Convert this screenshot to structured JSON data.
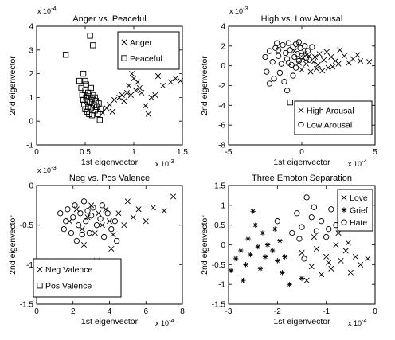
{
  "chart_data": [
    {
      "type": "scatter",
      "title": "Anger vs. Peaceful",
      "xlabel": "1st eigenvector",
      "ylabel": "2nd eigenvector",
      "x_scale_label": "x 10",
      "x_scale_exp": "-3",
      "y_scale_label": "x 10",
      "y_scale_exp": "-4",
      "xlim": [
        0,
        1.5
      ],
      "ylim": [
        -1,
        4
      ],
      "xticks": [
        "0",
        "0.5",
        "1",
        "1.5"
      ],
      "yticks": [
        "-1",
        "0",
        "1",
        "2",
        "3",
        "4"
      ],
      "legend_position": "top-right",
      "series": [
        {
          "name": "Anger",
          "marker": "x",
          "points": [
            [
              0.68,
              0.35
            ],
            [
              0.72,
              0.55
            ],
            [
              0.75,
              0.7
            ],
            [
              0.8,
              0.9
            ],
            [
              0.85,
              1.0
            ],
            [
              0.88,
              1.1
            ],
            [
              0.9,
              0.85
            ],
            [
              0.93,
              1.2
            ],
            [
              0.95,
              1.5
            ],
            [
              0.98,
              2.0
            ],
            [
              1.0,
              1.8
            ],
            [
              1.02,
              1.3
            ],
            [
              1.04,
              1.65
            ],
            [
              1.06,
              1.4
            ],
            [
              1.08,
              1.2
            ],
            [
              1.12,
              0.65
            ],
            [
              1.15,
              0.3
            ],
            [
              1.18,
              1.0
            ],
            [
              1.22,
              1.1
            ],
            [
              1.25,
              1.9
            ],
            [
              1.3,
              1.5
            ],
            [
              1.38,
              1.65
            ],
            [
              1.43,
              1.8
            ],
            [
              1.48,
              1.7
            ],
            [
              0.78,
              0.4
            ],
            [
              0.97,
              1.1
            ]
          ]
        },
        {
          "name": "Peaceful",
          "marker": "square",
          "points": [
            [
              0.3,
              2.8
            ],
            [
              0.44,
              1.7
            ],
            [
              0.46,
              1.4
            ],
            [
              0.47,
              1.1
            ],
            [
              0.48,
              0.9
            ],
            [
              0.49,
              0.7
            ],
            [
              0.5,
              0.5
            ],
            [
              0.5,
              1.3
            ],
            [
              0.51,
              1.0
            ],
            [
              0.52,
              0.4
            ],
            [
              0.52,
              0.85
            ],
            [
              0.53,
              1.2
            ],
            [
              0.53,
              0.6
            ],
            [
              0.54,
              0.3
            ],
            [
              0.54,
              1.05
            ],
            [
              0.55,
              0.8
            ],
            [
              0.55,
              3.6
            ],
            [
              0.56,
              1.4
            ],
            [
              0.56,
              0.55
            ],
            [
              0.57,
              0.95
            ],
            [
              0.57,
              0.25
            ],
            [
              0.58,
              1.1
            ],
            [
              0.58,
              3.2
            ],
            [
              0.59,
              0.7
            ],
            [
              0.6,
              0.45
            ],
            [
              0.6,
              1.0
            ],
            [
              0.61,
              0.85
            ],
            [
              0.62,
              0.6
            ],
            [
              0.63,
              0.3
            ],
            [
              0.64,
              0.75
            ],
            [
              0.65,
              0.05
            ],
            [
              0.66,
              0.5
            ],
            [
              0.5,
              1.7
            ],
            [
              0.48,
              2.0
            ],
            [
              0.51,
              1.55
            ]
          ]
        }
      ]
    },
    {
      "type": "scatter",
      "title": "High vs. Low Arousal",
      "xlabel": "1st eigenvector",
      "ylabel": "2nd eigenvector",
      "x_scale_label": "x 10",
      "x_scale_exp": "-4",
      "y_scale_label": "x 10",
      "y_scale_exp": "-3",
      "xlim": [
        -5,
        5
      ],
      "ylim": [
        -8,
        4
      ],
      "xticks": [
        "-5",
        "0",
        "5"
      ],
      "yticks": [
        "-8",
        "-6",
        "-4",
        "-2",
        "0",
        "2",
        "4"
      ],
      "legend_position": "bottom-right",
      "series": [
        {
          "name": "High Arousal",
          "marker": "x",
          "points": [
            [
              -0.2,
              0.3
            ],
            [
              0.1,
              0.8
            ],
            [
              0.3,
              0.2
            ],
            [
              0.5,
              1.0
            ],
            [
              0.8,
              0.4
            ],
            [
              1.0,
              -0.3
            ],
            [
              1.2,
              1.2
            ],
            [
              1.5,
              0.6
            ],
            [
              1.8,
              -0.2
            ],
            [
              2.0,
              0.9
            ],
            [
              2.3,
              0.5
            ],
            [
              2.6,
              1.6
            ],
            [
              2.9,
              1.0
            ],
            [
              3.2,
              0.3
            ],
            [
              3.5,
              0.7
            ],
            [
              4.0,
              0.5
            ],
            [
              4.6,
              0.4
            ],
            [
              0.6,
              -0.6
            ],
            [
              1.1,
              0.1
            ],
            [
              1.7,
              1.4
            ],
            [
              2.1,
              -0.1
            ],
            [
              0.2,
              1.3
            ],
            [
              0.9,
              0.9
            ],
            [
              1.4,
              -0.5
            ],
            [
              2.5,
              0.2
            ],
            [
              3.8,
              1.1
            ],
            [
              -0.5,
              1.5
            ],
            [
              0.0,
              -0.4
            ]
          ]
        },
        {
          "name": "Low Arousal",
          "marker": "o",
          "points": [
            [
              -2.5,
              0.9
            ],
            [
              -2.2,
              1.5
            ],
            [
              -2.0,
              0.4
            ],
            [
              -1.8,
              1.8
            ],
            [
              -1.6,
              1.0
            ],
            [
              -1.4,
              0.2
            ],
            [
              -1.3,
              2.1
            ],
            [
              -1.1,
              1.3
            ],
            [
              -1.0,
              0.7
            ],
            [
              -0.9,
              2.3
            ],
            [
              -0.8,
              1.6
            ],
            [
              -0.7,
              0.1
            ],
            [
              -0.6,
              1.9
            ],
            [
              -0.5,
              0.9
            ],
            [
              -0.4,
              2.2
            ],
            [
              -0.3,
              1.2
            ],
            [
              -0.2,
              0.5
            ],
            [
              -0.1,
              1.8
            ],
            [
              0.0,
              1.0
            ],
            [
              0.2,
              2.0
            ],
            [
              0.4,
              1.5
            ],
            [
              0.5,
              0.6
            ],
            [
              0.7,
              1.9
            ],
            [
              -2.4,
              -0.6
            ],
            [
              -1.9,
              -1.3
            ],
            [
              -1.5,
              -0.7
            ],
            [
              -1.2,
              -1.6
            ],
            [
              -2.2,
              -1.8
            ],
            [
              -1.0,
              -2.5
            ],
            [
              -0.6,
              -1.0
            ],
            [
              -1.7,
              2.3
            ],
            [
              -0.9,
              0.3
            ],
            [
              0.3,
              0.8
            ],
            [
              -0.4,
              -0.2
            ],
            [
              -1.6,
              1.6
            ],
            [
              -0.2,
              2.4
            ]
          ]
        },
        {
          "name": "",
          "marker": "square",
          "points": [
            [
              -0.8,
              -3.7
            ]
          ]
        }
      ]
    },
    {
      "type": "scatter",
      "title": "Neg vs. Pos Valence",
      "xlabel": "1st eigenvector",
      "ylabel": "2nd eigenvector",
      "x_scale_label": "x 10",
      "x_scale_exp": "-4",
      "y_scale_label": "x 10",
      "y_scale_exp": "-3",
      "xlim": [
        0,
        8
      ],
      "ylim": [
        -1.5,
        0
      ],
      "xticks": [
        "0",
        "2",
        "4",
        "6",
        "8"
      ],
      "yticks": [
        "-1.5",
        "-1",
        "-0.5",
        "0"
      ],
      "legend_position": "bottom-left",
      "series": [
        {
          "name": "Neg Valence",
          "marker": "x",
          "points": [
            [
              1.8,
              -0.45
            ],
            [
              2.2,
              -0.3
            ],
            [
              2.5,
              -0.55
            ],
            [
              2.8,
              -0.4
            ],
            [
              3.0,
              -0.25
            ],
            [
              3.2,
              -0.6
            ],
            [
              3.4,
              -0.35
            ],
            [
              3.6,
              -0.5
            ],
            [
              3.8,
              -0.3
            ],
            [
              4.0,
              -0.45
            ],
            [
              4.2,
              -0.62
            ],
            [
              4.5,
              -0.35
            ],
            [
              4.8,
              -0.5
            ],
            [
              5.0,
              -0.2
            ],
            [
              5.3,
              -0.4
            ],
            [
              5.6,
              -0.3
            ],
            [
              6.0,
              -0.45
            ],
            [
              6.4,
              -0.28
            ],
            [
              7.0,
              -0.32
            ],
            [
              7.5,
              -0.14
            ],
            [
              3.3,
              -0.95
            ],
            [
              2.6,
              -0.75
            ],
            [
              4.1,
              -0.8
            ]
          ]
        },
        {
          "name": "Pos Valence",
          "marker": "square",
          "points": []
        },
        {
          "name": "",
          "marker": "o",
          "points": [
            [
              1.3,
              -0.35
            ],
            [
              1.5,
              -0.55
            ],
            [
              1.7,
              -0.3
            ],
            [
              1.9,
              -0.6
            ],
            [
              2.0,
              -0.4
            ],
            [
              2.1,
              -0.25
            ],
            [
              2.3,
              -0.5
            ],
            [
              2.4,
              -0.35
            ],
            [
              2.6,
              -0.2
            ],
            [
              2.7,
              -0.45
            ],
            [
              2.9,
              -0.6
            ],
            [
              3.0,
              -0.38
            ],
            [
              3.1,
              -0.28
            ],
            [
              3.3,
              -0.5
            ],
            [
              3.5,
              -0.42
            ],
            [
              3.7,
              -0.65
            ],
            [
              3.9,
              -0.35
            ],
            [
              4.1,
              -0.55
            ],
            [
              4.4,
              -0.7
            ],
            [
              2.2,
              -0.7
            ],
            [
              1.6,
              -0.45
            ],
            [
              2.8,
              -0.32
            ],
            [
              3.6,
              -0.25
            ],
            [
              4.3,
              -0.45
            ],
            [
              2.5,
              -0.62
            ]
          ]
        }
      ]
    },
    {
      "type": "scatter",
      "title": "Three Emoton Separation",
      "xlabel": "1st eigenvector",
      "ylabel": "2nd eigenvector",
      "x_scale_label": "x 10",
      "x_scale_exp": "-4",
      "y_scale_label": "",
      "y_scale_exp": "",
      "xlim": [
        -3,
        0
      ],
      "ylim": [
        -1.5,
        1.5
      ],
      "xticks": [
        "-3",
        "-2",
        "-1",
        "0"
      ],
      "yticks": [
        "-1.5",
        "-1",
        "-0.5",
        "0",
        "0.5",
        "1",
        "1.5"
      ],
      "legend_position": "top-right",
      "series": [
        {
          "name": "Love",
          "marker": "x",
          "points": [
            [
              -1.5,
              -0.2
            ],
            [
              -1.3,
              -0.55
            ],
            [
              -1.2,
              -0.1
            ],
            [
              -1.1,
              -0.75
            ],
            [
              -1.0,
              -0.3
            ],
            [
              -0.9,
              -0.6
            ],
            [
              -0.8,
              0.0
            ],
            [
              -0.7,
              -0.4
            ],
            [
              -0.6,
              -0.15
            ],
            [
              -0.5,
              -0.7
            ],
            [
              -0.4,
              -0.3
            ],
            [
              -0.3,
              -0.5
            ],
            [
              -0.15,
              -0.35
            ],
            [
              -1.4,
              -0.9
            ],
            [
              -0.95,
              -0.45
            ],
            [
              -0.75,
              0.3
            ],
            [
              -1.25,
              0.2
            ],
            [
              -0.55,
              0.05
            ]
          ]
        },
        {
          "name": "Grief",
          "marker": "asterisk",
          "points": [
            [
              -2.95,
              -0.65
            ],
            [
              -2.85,
              -0.35
            ],
            [
              -2.75,
              -0.15
            ],
            [
              -2.65,
              -0.5
            ],
            [
              -2.6,
              0.15
            ],
            [
              -2.55,
              -0.25
            ],
            [
              -2.45,
              0.5
            ],
            [
              -2.4,
              -0.05
            ],
            [
              -2.35,
              -0.6
            ],
            [
              -2.3,
              0.3
            ],
            [
              -2.25,
              -0.3
            ],
            [
              -2.2,
              0.0
            ],
            [
              -2.1,
              -0.15
            ],
            [
              -2.05,
              0.4
            ],
            [
              -2.0,
              -0.4
            ],
            [
              -1.95,
              0.1
            ],
            [
              -1.9,
              -0.7
            ],
            [
              -1.85,
              -0.3
            ],
            [
              -1.75,
              -1.0
            ],
            [
              -1.5,
              -0.85
            ],
            [
              -2.5,
              0.85
            ],
            [
              -2.7,
              -0.9
            ]
          ]
        },
        {
          "name": "Hate",
          "marker": "o",
          "points": [
            [
              -2.0,
              0.6
            ],
            [
              -1.7,
              0.3
            ],
            [
              -1.6,
              0.8
            ],
            [
              -1.5,
              0.45
            ],
            [
              -1.4,
              1.2
            ],
            [
              -1.3,
              0.7
            ],
            [
              -1.2,
              0.35
            ],
            [
              -1.1,
              0.6
            ],
            [
              -1.0,
              0.2
            ],
            [
              -0.9,
              0.9
            ],
            [
              -0.8,
              0.5
            ],
            [
              -0.7,
              0.75
            ],
            [
              -1.55,
              0.15
            ],
            [
              -1.25,
              0.95
            ],
            [
              -0.95,
              0.4
            ],
            [
              -1.45,
              -0.35
            ]
          ]
        }
      ]
    }
  ]
}
